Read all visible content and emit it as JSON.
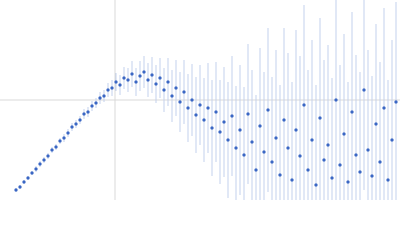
{
  "chart_data": {
    "type": "scatter",
    "x": [
      16,
      20,
      24,
      28,
      32,
      36,
      40,
      44,
      48,
      52,
      56,
      60,
      64,
      68,
      72,
      76,
      80,
      84,
      88,
      92,
      96,
      100,
      104,
      108,
      112,
      116,
      120,
      124,
      128,
      132,
      136,
      140,
      144,
      148,
      152,
      156,
      160,
      164,
      168,
      172,
      176,
      180,
      184,
      188,
      192,
      196,
      200,
      204,
      208,
      212,
      216,
      220,
      224,
      228,
      232,
      236,
      240,
      244,
      248,
      252,
      256,
      260,
      264,
      268,
      272,
      276,
      280,
      284,
      288,
      292,
      296,
      300,
      304,
      308,
      312,
      316,
      320,
      324,
      328,
      332,
      336,
      340,
      344,
      348,
      352,
      356,
      360,
      364,
      368,
      372,
      376,
      380,
      384,
      388,
      392,
      396
    ],
    "series": [
      {
        "color": "#3a66c4",
        "error_color": "#c3d1ec",
        "values": [
          10,
          13,
          18,
          22,
          27,
          31,
          36,
          40,
          44,
          50,
          53,
          59,
          62,
          67,
          73,
          76,
          80,
          86,
          88,
          94,
          97,
          102,
          104,
          110,
          112,
          118,
          115,
          122,
          120,
          126,
          118,
          124,
          128,
          120,
          125,
          116,
          122,
          110,
          118,
          104,
          112,
          98,
          108,
          92,
          100,
          85,
          95,
          80,
          92,
          72,
          88,
          68,
          78,
          60,
          84,
          52,
          70,
          45,
          86,
          58,
          30,
          74,
          48,
          90,
          38,
          62,
          25,
          80,
          52,
          20,
          70,
          44,
          95,
          30,
          60,
          15,
          82,
          40,
          55,
          22,
          100,
          35,
          66,
          18,
          88,
          45,
          28,
          110,
          50,
          24,
          76,
          38,
          92,
          20,
          60,
          98
        ],
        "errors": [
          2,
          2,
          2,
          2,
          2,
          3,
          3,
          3,
          3,
          3,
          3,
          3,
          4,
          4,
          4,
          4,
          4,
          5,
          5,
          5,
          5,
          6,
          6,
          7,
          8,
          9,
          10,
          11,
          12,
          13,
          14,
          15,
          16,
          17,
          18,
          19,
          20,
          22,
          24,
          26,
          28,
          30,
          32,
          34,
          36,
          38,
          40,
          42,
          45,
          48,
          50,
          52,
          55,
          58,
          60,
          62,
          65,
          68,
          70,
          72,
          75,
          78,
          80,
          82,
          85,
          88,
          90,
          92,
          95,
          98,
          100,
          100,
          100,
          100,
          100,
          100,
          100,
          100,
          100,
          100,
          100,
          100,
          100,
          100,
          100,
          100,
          100,
          100,
          100,
          100,
          100,
          100,
          100,
          100,
          100,
          100
        ]
      }
    ],
    "xlim": [
      0,
      400
    ],
    "ylim": [
      0,
      200
    ],
    "xticks": [
      115
    ],
    "yticks": [
      100
    ],
    "grid": true
  }
}
